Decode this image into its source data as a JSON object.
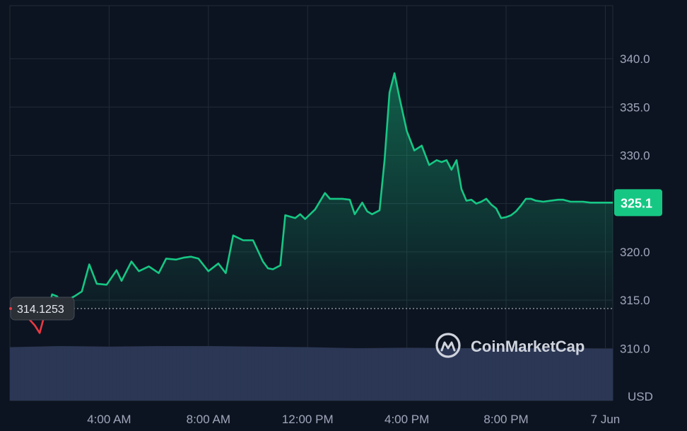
{
  "chart_data": {
    "type": "area",
    "currency_label": "USD",
    "y_ticks": [
      310.0,
      315.0,
      320.0,
      325.0,
      330.0,
      335.0,
      340.0
    ],
    "y_tick_labels": [
      "310.0",
      "315.0",
      "320.0",
      "",
      "330.0",
      "335.0",
      "340.0"
    ],
    "ylim": [
      304.6,
      345.5
    ],
    "x_ticks": [
      {
        "label": "4:00 AM",
        "t": 4
      },
      {
        "label": "8:00 AM",
        "t": 8
      },
      {
        "label": "12:00 PM",
        "t": 12
      },
      {
        "label": "4:00 PM",
        "t": 16
      },
      {
        "label": "8:00 PM",
        "t": 20
      },
      {
        "label": "7 Jun",
        "t": 24
      }
    ],
    "xlim": [
      0.0,
      24.3
    ],
    "reference_price": 314.1253,
    "reference_label": "314.1253",
    "current_price": 325.1,
    "current_label": "325.1",
    "grid": true,
    "watermark": "CoinMarketCap",
    "colors": {
      "background": "#0d1421",
      "grid": "#222b38",
      "up_line": "#16c784",
      "down_line": "#ea3943",
      "price_badge": "#16c784",
      "volume": "#2b3754",
      "axis_text": "#a1a7bb",
      "reference_badge": "#2b2f36"
    },
    "series": [
      {
        "x": [
          0.0,
          0.5,
          1.0,
          1.2,
          1.4,
          1.5,
          1.6,
          1.7,
          1.9,
          2.1,
          2.3,
          2.6,
          2.9,
          3.2,
          3.5,
          3.9,
          4.3,
          4.5,
          4.9,
          5.2,
          5.6,
          6.0,
          6.3,
          6.7,
          7.0,
          7.3,
          7.6,
          8.0,
          8.4,
          8.7,
          9.0,
          9.4,
          9.8,
          10.2,
          10.4,
          10.6,
          10.9,
          11.1,
          11.5,
          11.7,
          11.9,
          12.3,
          12.7,
          12.9,
          13.1,
          13.4,
          13.7,
          13.9,
          14.2,
          14.4,
          14.6,
          14.9,
          15.1,
          15.3,
          15.5,
          15.7,
          16.0,
          16.3,
          16.6,
          16.9,
          17.2,
          17.4,
          17.6,
          17.8,
          18.0,
          18.2,
          18.3,
          18.4,
          18.6,
          18.8,
          19.0,
          19.2,
          19.4,
          19.6,
          19.8,
          20.0,
          20.2,
          20.4,
          20.6,
          20.8,
          21.0,
          21.2,
          21.5,
          21.8,
          22.1,
          22.3,
          22.6,
          22.8,
          23.1,
          23.4,
          23.7,
          24.0,
          24.3
        ],
        "values": [
          314.1,
          313.8,
          312.4,
          311.6,
          313.5,
          314.0,
          314.6,
          315.6,
          315.4,
          314.7,
          315.0,
          315.4,
          315.9,
          318.7,
          316.7,
          316.6,
          318.1,
          317.0,
          319.0,
          318.0,
          318.5,
          317.8,
          319.3,
          319.2,
          319.4,
          319.5,
          319.3,
          318.0,
          318.8,
          317.8,
          321.7,
          321.2,
          321.2,
          319.0,
          318.3,
          318.2,
          318.6,
          323.8,
          323.5,
          323.9,
          323.4,
          324.4,
          326.1,
          325.5,
          325.5,
          325.5,
          325.4,
          323.9,
          325.1,
          324.2,
          323.9,
          324.3,
          329.5,
          336.5,
          338.5,
          336.0,
          332.5,
          330.5,
          331.0,
          329.0,
          329.5,
          329.3,
          329.5,
          328.5,
          329.5,
          326.5,
          325.9,
          325.3,
          325.4,
          325.0,
          325.2,
          325.5,
          324.9,
          324.5,
          323.5,
          323.6,
          323.8,
          324.2,
          324.8,
          325.5,
          325.5,
          325.3,
          325.2,
          325.3,
          325.4,
          325.4,
          325.2,
          325.2,
          325.2,
          325.1,
          325.1,
          325.1,
          325.1
        ]
      }
    ],
    "volume": {
      "x": [
        0.0,
        2.0,
        4.0,
        6.0,
        8.0,
        10.0,
        12.0,
        14.0,
        16.0,
        18.0,
        20.0,
        22.0,
        24.0
      ],
      "relative": [
        0.98,
        1.0,
        0.99,
        1.0,
        1.0,
        0.99,
        0.98,
        0.96,
        0.97,
        0.96,
        0.96,
        0.96,
        0.95
      ]
    }
  }
}
